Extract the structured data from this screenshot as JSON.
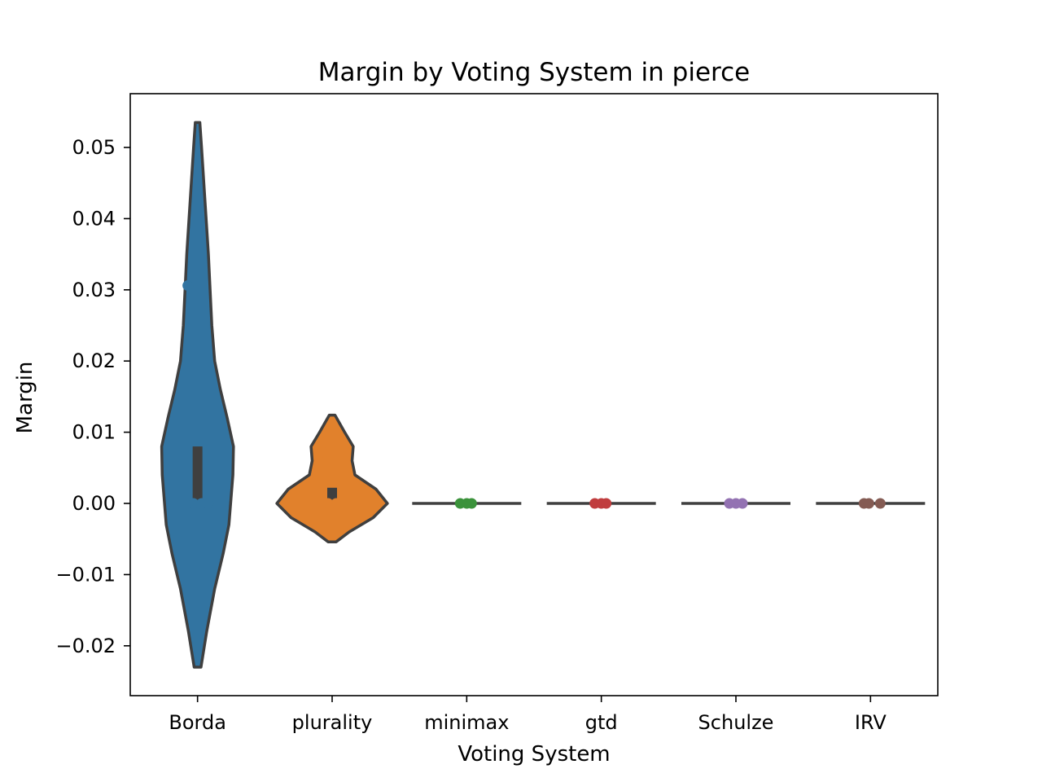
{
  "chart_data": {
    "type": "violin",
    "title": "Margin by Voting System in pierce",
    "xlabel": "Voting System",
    "ylabel": "Margin",
    "ylim": [
      -0.0265,
      0.058
    ],
    "yticks": [
      -0.02,
      -0.01,
      0.0,
      0.01,
      0.02,
      0.03,
      0.04,
      0.05
    ],
    "ytick_labels": [
      "−0.02",
      "−0.01",
      "0.00",
      "0.01",
      "0.02",
      "0.03",
      "0.04",
      "0.05"
    ],
    "categories": [
      "Borda",
      "plurality",
      "minimax",
      "gtd",
      "Schulze",
      "IRV"
    ],
    "grid": false,
    "legend": "none",
    "series": [
      {
        "category": "Borda",
        "color": "#3274a1",
        "points": [
          0.0306,
          0.0,
          0.0,
          0.0
        ],
        "box": {
          "q1": 0.0,
          "q3": 0.008,
          "median": 0.0
        },
        "violin": {
          "min": -0.023,
          "max": 0.0535,
          "density": [
            [
              -0.023,
              0.06
            ],
            [
              -0.018,
              0.16
            ],
            [
              -0.012,
              0.3
            ],
            [
              -0.007,
              0.45
            ],
            [
              -0.003,
              0.55
            ],
            [
              0.0,
              0.58
            ],
            [
              0.004,
              0.62
            ],
            [
              0.008,
              0.63
            ],
            [
              0.012,
              0.52
            ],
            [
              0.016,
              0.4
            ],
            [
              0.02,
              0.3
            ],
            [
              0.025,
              0.25
            ],
            [
              0.03,
              0.22
            ],
            [
              0.035,
              0.19
            ],
            [
              0.04,
              0.15
            ],
            [
              0.045,
              0.11
            ],
            [
              0.05,
              0.07
            ],
            [
              0.0535,
              0.04
            ]
          ]
        }
      },
      {
        "category": "plurality",
        "color": "#e1812c",
        "points": [
          0.0072,
          0.0,
          0.0
        ],
        "box": {
          "q1": 0.0,
          "q3": 0.0022,
          "median": 0.0
        },
        "violin": {
          "min": -0.0054,
          "max": 0.0124,
          "density": [
            [
              -0.0054,
              0.07
            ],
            [
              -0.004,
              0.3
            ],
            [
              -0.002,
              0.72
            ],
            [
              0.0,
              0.97
            ],
            [
              0.002,
              0.77
            ],
            [
              0.004,
              0.4
            ],
            [
              0.006,
              0.35
            ],
            [
              0.008,
              0.37
            ],
            [
              0.01,
              0.22
            ],
            [
              0.0124,
              0.05
            ]
          ]
        }
      },
      {
        "category": "minimax",
        "color": "#3a923a",
        "points": [
          0.0,
          0.0,
          0.0
        ],
        "box": {
          "q1": 0.0,
          "q3": 0.0,
          "median": 0.0
        },
        "violin": {
          "min": 0.0,
          "max": 0.0,
          "density": []
        }
      },
      {
        "category": "gtd",
        "color": "#c03d3e",
        "points": [
          0.0,
          0.0,
          0.0
        ],
        "box": {
          "q1": 0.0,
          "q3": 0.0,
          "median": 0.0
        },
        "violin": {
          "min": 0.0,
          "max": 0.0,
          "density": []
        }
      },
      {
        "category": "Schulze",
        "color": "#9372b2",
        "points": [
          0.0,
          0.0,
          0.0
        ],
        "box": {
          "q1": 0.0,
          "q3": 0.0,
          "median": 0.0
        },
        "violin": {
          "min": 0.0,
          "max": 0.0,
          "density": []
        }
      },
      {
        "category": "IRV",
        "color": "#845b53",
        "points": [
          0.0,
          0.0,
          0.0
        ],
        "box": {
          "q1": 0.0,
          "q3": 0.0,
          "median": 0.0
        },
        "violin": {
          "min": 0.0,
          "max": 0.0,
          "density": []
        }
      }
    ]
  }
}
